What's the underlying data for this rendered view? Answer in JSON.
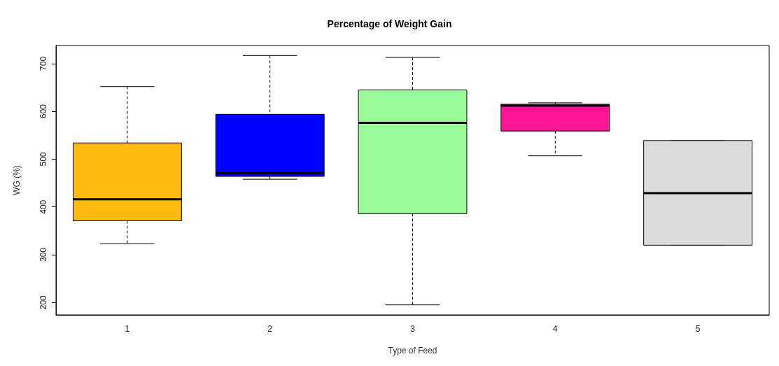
{
  "chart_data": {
    "type": "box",
    "title": "Percentage of Weight Gain",
    "xlabel": "Type of Feed",
    "ylabel": "WG (%)",
    "categories": [
      "1",
      "2",
      "3",
      "4",
      "5"
    ],
    "boxes": [
      {
        "low": 323,
        "q1": 371,
        "median": 416,
        "q3": 534,
        "high": 652
      },
      {
        "low": 458,
        "q1": 464,
        "median": 471,
        "q3": 594,
        "high": 717
      },
      {
        "low": 195,
        "q1": 386,
        "median": 576,
        "q3": 645,
        "high": 713
      },
      {
        "low": 507,
        "q1": 559,
        "median": 612,
        "q3": 615,
        "high": 618
      },
      {
        "low": 320,
        "q1": 320,
        "median": 429,
        "q3": 539,
        "high": 539
      }
    ],
    "colors": [
      "#ffb90f",
      "#0000ff",
      "#98fb98",
      "#ff1493",
      "#dcdcdc"
    ],
    "ylim": [
      174,
      738
    ],
    "yticks": [
      200,
      300,
      400,
      500,
      600,
      700
    ],
    "grid": false
  }
}
